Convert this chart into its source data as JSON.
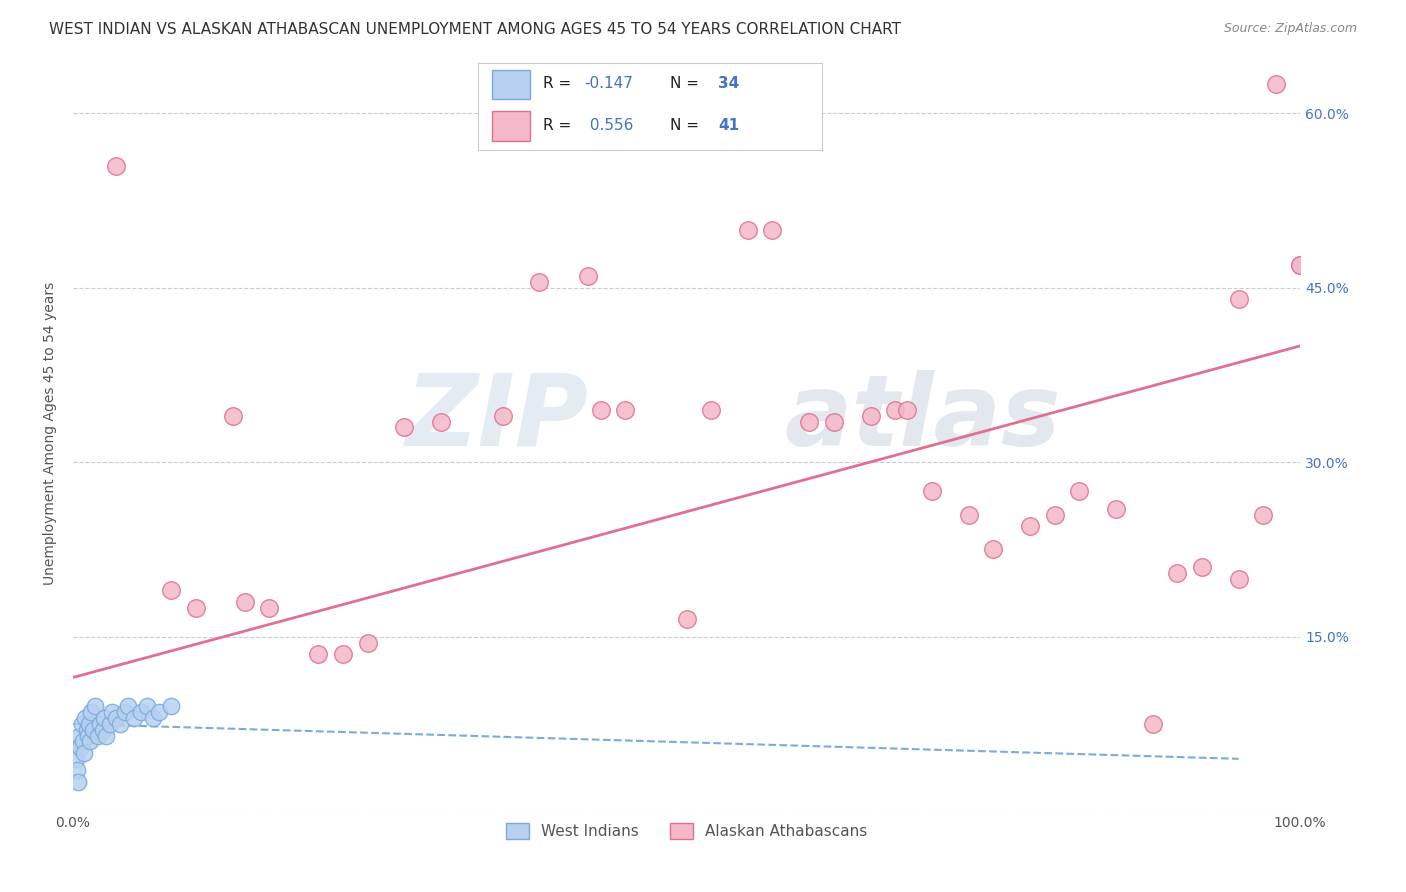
{
  "title": "WEST INDIAN VS ALASKAN ATHABASCAN UNEMPLOYMENT AMONG AGES 45 TO 54 YEARS CORRELATION CHART",
  "source": "Source: ZipAtlas.com",
  "ylabel": "Unemployment Among Ages 45 to 54 years",
  "xlim": [
    0.0,
    1.0
  ],
  "ylim": [
    0.0,
    0.65
  ],
  "xticks": [
    0.0,
    0.2,
    0.4,
    0.6,
    0.8,
    1.0
  ],
  "xticklabels": [
    "0.0%",
    "",
    "",
    "",
    "",
    "100.0%"
  ],
  "yticks": [
    0.0,
    0.15,
    0.3,
    0.45,
    0.6
  ],
  "yticklabels": [
    "",
    "15.0%",
    "30.0%",
    "45.0%",
    "60.0%"
  ],
  "background_color": "#ffffff",
  "grid_color": "#cccccc",
  "watermark_zip": "ZIP",
  "watermark_atlas": "atlas",
  "west_indian_x": [
    0.002,
    0.002,
    0.003,
    0.004,
    0.005,
    0.006,
    0.007,
    0.008,
    0.009,
    0.01,
    0.011,
    0.012,
    0.013,
    0.014,
    0.015,
    0.016,
    0.018,
    0.02,
    0.022,
    0.024,
    0.025,
    0.027,
    0.03,
    0.032,
    0.035,
    0.038,
    0.042,
    0.045,
    0.05,
    0.055,
    0.06,
    0.065,
    0.07,
    0.08
  ],
  "west_indian_y": [
    0.055,
    0.045,
    0.035,
    0.025,
    0.065,
    0.055,
    0.075,
    0.06,
    0.05,
    0.08,
    0.07,
    0.065,
    0.075,
    0.06,
    0.085,
    0.07,
    0.09,
    0.065,
    0.075,
    0.07,
    0.08,
    0.065,
    0.075,
    0.085,
    0.08,
    0.075,
    0.085,
    0.09,
    0.08,
    0.085,
    0.09,
    0.08,
    0.085,
    0.09
  ],
  "west_indian_color": "#b8d0f0",
  "west_indian_edge": "#7aabdc",
  "west_indian_R": -0.147,
  "west_indian_N": 34,
  "west_indian_trendline_x": [
    0.0,
    0.95
  ],
  "west_indian_trendline_y": [
    0.075,
    0.045
  ],
  "alaskan_x": [
    0.035,
    0.08,
    0.1,
    0.13,
    0.14,
    0.16,
    0.2,
    0.22,
    0.24,
    0.27,
    0.3,
    0.35,
    0.38,
    0.42,
    0.43,
    0.45,
    0.5,
    0.52,
    0.55,
    0.57,
    0.6,
    0.62,
    0.65,
    0.67,
    0.68,
    0.7,
    0.73,
    0.75,
    0.78,
    0.8,
    0.82,
    0.85,
    0.88,
    0.9,
    0.92,
    0.95,
    0.95,
    0.97,
    0.98,
    1.0,
    1.0
  ],
  "alaskan_y": [
    0.555,
    0.19,
    0.175,
    0.34,
    0.18,
    0.175,
    0.135,
    0.135,
    0.145,
    0.33,
    0.335,
    0.34,
    0.455,
    0.46,
    0.345,
    0.345,
    0.165,
    0.345,
    0.5,
    0.5,
    0.335,
    0.335,
    0.34,
    0.345,
    0.345,
    0.275,
    0.255,
    0.225,
    0.245,
    0.255,
    0.275,
    0.26,
    0.075,
    0.205,
    0.21,
    0.44,
    0.2,
    0.255,
    0.625,
    0.47,
    0.47
  ],
  "alaskan_color": "#f4b8c8",
  "alaskan_edge": "#e07090",
  "alaskan_R": 0.556,
  "alaskan_N": 41,
  "alaskan_trendline_x": [
    0.0,
    1.0
  ],
  "alaskan_trendline_y": [
    0.115,
    0.4
  ],
  "legend_west_indian": "West Indians",
  "legend_alaskan": "Alaskan Athabascans",
  "title_fontsize": 11,
  "axis_label_fontsize": 10,
  "tick_fontsize": 10,
  "right_tick_color": "#4472c4",
  "legend_R_color": "#4472c4",
  "legend_N_color": "#4472c4"
}
